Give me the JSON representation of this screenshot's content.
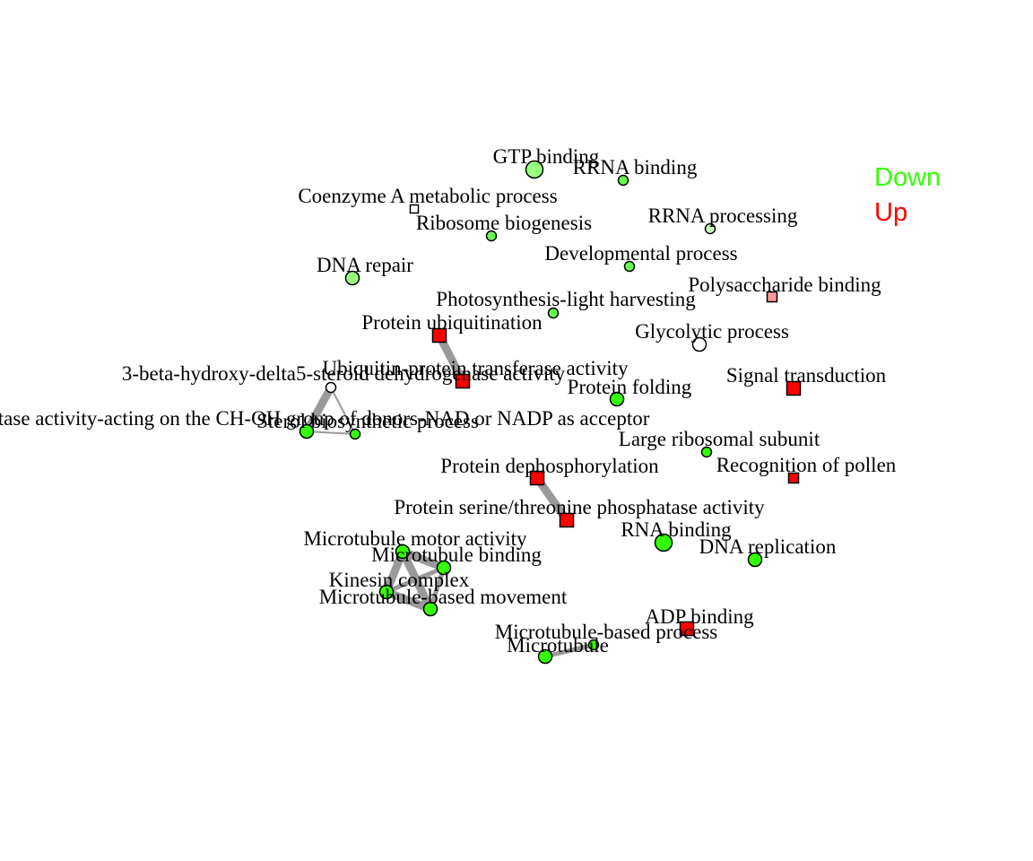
{
  "legend": [
    {
      "label": "Down",
      "color": "#33ff00"
    },
    {
      "label": "Up",
      "color": "#ff0000"
    }
  ],
  "nodes": [
    {
      "id": "gtp",
      "label": "GTP binding",
      "shape": "circle",
      "size": "large",
      "color": "#99ff80"
    },
    {
      "id": "rrna-b",
      "label": "RRNA binding",
      "shape": "circle",
      "size": "small",
      "color": "#66ff4d"
    },
    {
      "id": "coa",
      "label": "Coenzyme A metabolic process",
      "shape": "square",
      "size": "tiny",
      "color": "#ffffff"
    },
    {
      "id": "ribo",
      "label": "Ribosome biogenesis",
      "shape": "circle",
      "size": "small",
      "color": "#66ff4d"
    },
    {
      "id": "rrna-p",
      "label": "RRNA processing",
      "shape": "circle",
      "size": "small",
      "color": "#ccffbf"
    },
    {
      "id": "dev",
      "label": "Developmental process",
      "shape": "circle",
      "size": "small",
      "color": "#66ff4d"
    },
    {
      "id": "dna-rep",
      "label": "DNA repair",
      "shape": "circle",
      "size": "medium",
      "color": "#99ff80"
    },
    {
      "id": "poly",
      "label": "Polysaccharide binding",
      "shape": "square",
      "size": "small",
      "color": "#ff9999"
    },
    {
      "id": "photo",
      "label": "Photosynthesis-light harvesting",
      "shape": "circle",
      "size": "small",
      "color": "#66ff4d"
    },
    {
      "id": "ubq",
      "label": "Protein ubiquitination",
      "shape": "square",
      "size": "medium",
      "color": "#ff0000"
    },
    {
      "id": "glyc",
      "label": "Glycolytic process",
      "shape": "circle",
      "size": "medium",
      "color": "#ffffff"
    },
    {
      "id": "ubq-tr",
      "label": "Ubiquitin-protein transferase activity",
      "shape": "square",
      "size": "medium",
      "color": "#ff0000"
    },
    {
      "id": "hsd",
      "label": "3-beta-hydroxy-delta5-steroid dehydrogenase activity",
      "shape": "circle",
      "size": "small",
      "color": "#ffffff"
    },
    {
      "id": "sig",
      "label": "Signal transduction",
      "shape": "square",
      "size": "medium",
      "color": "#ff0000"
    },
    {
      "id": "fold",
      "label": "Protein folding",
      "shape": "circle",
      "size": "medium",
      "color": "#33ff00"
    },
    {
      "id": "oxred",
      "label": "ctase activity-acting on the CH-OH group of donors-NAD or NADP as acceptor",
      "shape": "circle",
      "size": "medium",
      "color": "#33ff00"
    },
    {
      "id": "sterol",
      "label": "Sterol biosynthetic process",
      "shape": "circle",
      "size": "small",
      "color": "#33ff00"
    },
    {
      "id": "lrs",
      "label": "Large ribosomal subunit",
      "shape": "circle",
      "size": "small",
      "color": "#33ff00"
    },
    {
      "id": "dephos",
      "label": "Protein dephosphorylation",
      "shape": "square",
      "size": "medium",
      "color": "#ff0000"
    },
    {
      "id": "pollen",
      "label": "Recognition of pollen",
      "shape": "square",
      "size": "small",
      "color": "#ff0000"
    },
    {
      "id": "ppase",
      "label": "Protein serine/threonine phosphatase activity",
      "shape": "square",
      "size": "medium",
      "color": "#ff0000"
    },
    {
      "id": "rna-b",
      "label": "RNA binding",
      "shape": "circle",
      "size": "large",
      "color": "#33ff00"
    },
    {
      "id": "mt-motor",
      "label": "Microtubule motor activity",
      "shape": "circle",
      "size": "medium",
      "color": "#33ff00"
    },
    {
      "id": "dna-repl",
      "label": "DNA replication",
      "shape": "circle",
      "size": "medium",
      "color": "#33ff00"
    },
    {
      "id": "mt-bind",
      "label": "Microtubule binding",
      "shape": "circle",
      "size": "medium",
      "color": "#33ff00"
    },
    {
      "id": "kin",
      "label": "Kinesin complex",
      "shape": "circle",
      "size": "medium",
      "color": "#33ff00"
    },
    {
      "id": "mt-move",
      "label": "Microtubule-based movement",
      "shape": "circle",
      "size": "medium",
      "color": "#33ff00"
    },
    {
      "id": "adp",
      "label": "ADP binding",
      "shape": "square",
      "size": "medium",
      "color": "#ff0000"
    },
    {
      "id": "mt-proc",
      "label": "Microtubule-based process",
      "shape": "circle",
      "size": "small",
      "color": "#33ff00"
    },
    {
      "id": "mt",
      "label": "Microtubule",
      "shape": "circle",
      "size": "medium",
      "color": "#33ff00"
    }
  ],
  "edges": [
    {
      "from": "ubq",
      "to": "ubq-tr",
      "weight": "heavy"
    },
    {
      "from": "hsd",
      "to": "oxred",
      "weight": "heavy"
    },
    {
      "from": "hsd",
      "to": "sterol",
      "weight": "light"
    },
    {
      "from": "oxred",
      "to": "sterol",
      "weight": "light"
    },
    {
      "from": "dephos",
      "to": "ppase",
      "weight": "heavy"
    },
    {
      "from": "mt-motor",
      "to": "mt-bind",
      "weight": "heavy"
    },
    {
      "from": "mt-motor",
      "to": "kin",
      "weight": "heavy"
    },
    {
      "from": "mt-motor",
      "to": "mt-move",
      "weight": "heavy"
    },
    {
      "from": "mt-bind",
      "to": "kin",
      "weight": "medium"
    },
    {
      "from": "mt-bind",
      "to": "mt-move",
      "weight": "medium"
    },
    {
      "from": "kin",
      "to": "mt-move",
      "weight": "heavy"
    },
    {
      "from": "mt",
      "to": "mt-proc",
      "weight": "medium"
    }
  ]
}
